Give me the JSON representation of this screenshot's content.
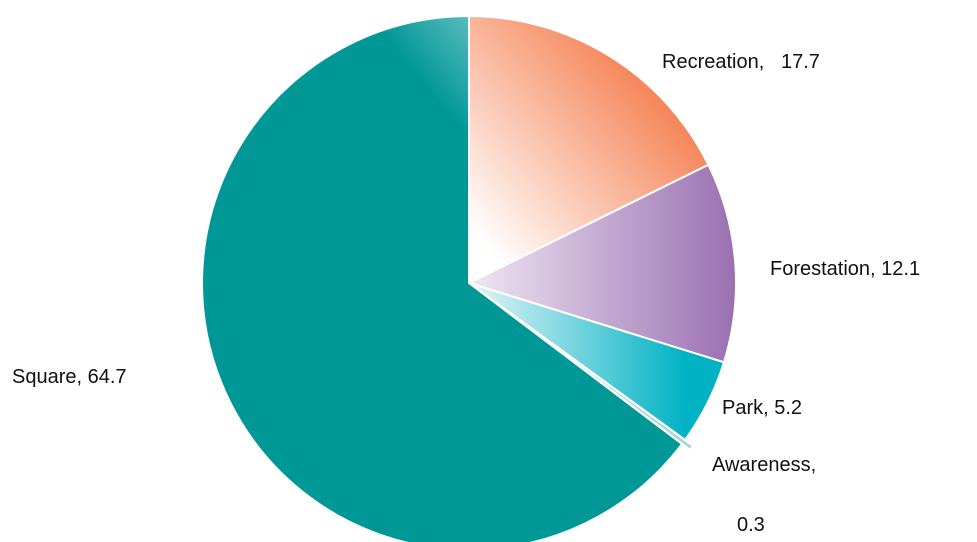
{
  "chart_data": {
    "type": "pie",
    "title": "",
    "start_angle_deg": 90,
    "direction": "clockwise",
    "slices": [
      {
        "name": "Recreation",
        "value": 17.7,
        "color": "#f47b4b",
        "label_lines": [
          "Recreation,   17.7"
        ]
      },
      {
        "name": "Forestation",
        "value": 12.1,
        "color": "#9a6fb0",
        "label_lines": [
          "Forestation, 12.1"
        ]
      },
      {
        "name": "Park",
        "value": 5.2,
        "color": "#00b2c4",
        "label_lines": [
          "Park, 5.2"
        ]
      },
      {
        "name": "Awareness",
        "value": 0.3,
        "color": "#a8d4d6",
        "label_lines": [
          "Awareness,",
          "0.3"
        ]
      },
      {
        "name": "Square",
        "value": 64.7,
        "color": "#009797",
        "label_lines": [
          "Square, 64.7"
        ]
      }
    ]
  }
}
